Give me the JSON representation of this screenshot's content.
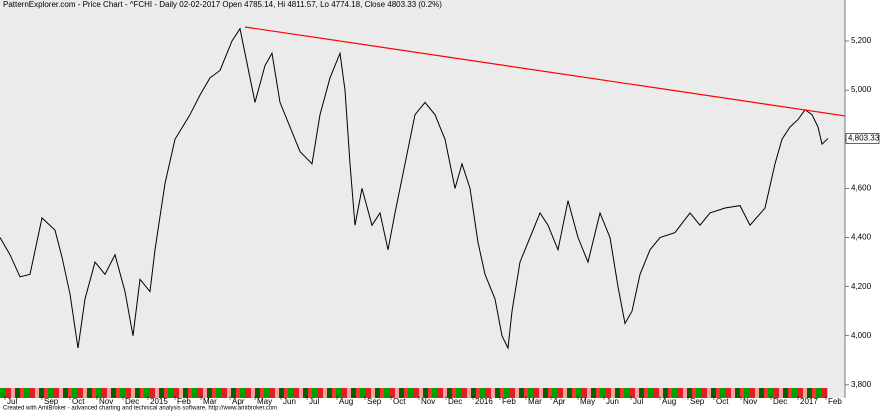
{
  "chart_data": {
    "type": "line",
    "title": "PatternExplorer.com - Price Chart - ^FCHI - Daily 02-02-2017 Open 4785.14, Hi 4811.57, Lo 4774.18, Close 4803.33 (0.2%)",
    "footer": "Created with AmiBroker - advanced charting and technical analysis software. http://www.amibroker.com",
    "x": [
      0,
      10,
      20,
      30,
      42,
      55,
      62,
      70,
      78,
      85,
      95,
      105,
      115,
      125,
      133,
      140,
      150,
      155,
      165,
      175,
      190,
      200,
      210,
      220,
      232,
      240,
      245,
      255,
      265,
      272,
      280,
      290,
      300,
      312,
      320,
      330,
      340,
      345,
      350,
      355,
      362,
      372,
      380,
      388,
      395,
      405,
      415,
      425,
      435,
      445,
      455,
      462,
      470,
      478,
      485,
      495,
      502,
      508,
      512,
      520,
      530,
      540,
      548,
      558,
      568,
      578,
      588,
      600,
      610,
      618,
      625,
      632,
      640,
      650,
      660,
      675,
      690,
      700,
      710,
      725,
      740,
      750,
      765,
      775,
      782,
      790,
      798,
      805,
      812,
      818,
      822,
      828
    ],
    "series": [
      {
        "color": "#000000",
        "values": [
          4400,
          4330,
          4240,
          4250,
          4480,
          4430,
          4320,
          4170,
          3950,
          4150,
          4300,
          4250,
          4330,
          4180,
          4000,
          4230,
          4180,
          4350,
          4620,
          4800,
          4900,
          4980,
          5050,
          5080,
          5200,
          5250,
          5150,
          4950,
          5100,
          5150,
          4950,
          4850,
          4750,
          4700,
          4900,
          5050,
          5150,
          5000,
          4700,
          4450,
          4600,
          4450,
          4500,
          4350,
          4500,
          4700,
          4900,
          4950,
          4900,
          4800,
          4600,
          4700,
          4600,
          4380,
          4250,
          4150,
          4000,
          3950,
          4100,
          4300,
          4400,
          4500,
          4450,
          4350,
          4550,
          4400,
          4300,
          4500,
          4400,
          4200,
          4050,
          4100,
          4250,
          4350,
          4400,
          4420,
          4500,
          4450,
          4500,
          4520,
          4530,
          4450,
          4520,
          4700,
          4800,
          4850,
          4880,
          4920,
          4900,
          4850,
          4780,
          4803.33
        ]
      }
    ],
    "trendline": {
      "x": [
        245,
        845
      ],
      "values": [
        5257,
        4895
      ],
      "color": "#ff0000"
    },
    "last_value": {
      "value": 4803.33,
      "label": "4,803.33"
    },
    "xlim": [
      0,
      845
    ],
    "xticks": [
      {
        "value": 5,
        "label": "Jul"
      },
      {
        "value": 42,
        "label": "Sep"
      },
      {
        "value": 70,
        "label": "Oct"
      },
      {
        "value": 97,
        "label": "Nov"
      },
      {
        "value": 123,
        "label": "Dec"
      },
      {
        "value": 148,
        "label": "2015"
      },
      {
        "value": 175,
        "label": "Feb"
      },
      {
        "value": 201,
        "label": "Mar"
      },
      {
        "value": 230,
        "label": "Apr"
      },
      {
        "value": 255,
        "label": "May"
      },
      {
        "value": 281,
        "label": "Jun"
      },
      {
        "value": 307,
        "label": "Jul"
      },
      {
        "value": 337,
        "label": "Aug"
      },
      {
        "value": 365,
        "label": "Sep"
      },
      {
        "value": 391,
        "label": "Oct"
      },
      {
        "value": 419,
        "label": "Nov"
      },
      {
        "value": 446,
        "label": "Dec"
      },
      {
        "value": 473,
        "label": "2016"
      },
      {
        "value": 500,
        "label": "Feb"
      },
      {
        "value": 526,
        "label": "Mar"
      },
      {
        "value": 551,
        "label": "Apr"
      },
      {
        "value": 578,
        "label": "May"
      },
      {
        "value": 604,
        "label": "Jun"
      },
      {
        "value": 631,
        "label": "Jul"
      },
      {
        "value": 660,
        "label": "Aug"
      },
      {
        "value": 688,
        "label": "Sep"
      },
      {
        "value": 714,
        "label": "Oct"
      },
      {
        "value": 741,
        "label": "Nov"
      },
      {
        "value": 771,
        "label": "Dec"
      },
      {
        "value": 798,
        "label": "2017"
      },
      {
        "value": 826,
        "label": "Feb"
      }
    ],
    "ylim": [
      3759,
      5318
    ],
    "yticks": [
      {
        "value": 3800,
        "label": "3,800"
      },
      {
        "value": 4000,
        "label": "4,000"
      },
      {
        "value": 4200,
        "label": "4,200"
      },
      {
        "value": 4400,
        "label": "4,400"
      },
      {
        "value": 4600,
        "label": "4,600"
      },
      {
        "value": 4800,
        "label": "4,800"
      },
      {
        "value": 5000,
        "label": "5,000"
      },
      {
        "value": 5200,
        "label": "5,200"
      }
    ]
  }
}
